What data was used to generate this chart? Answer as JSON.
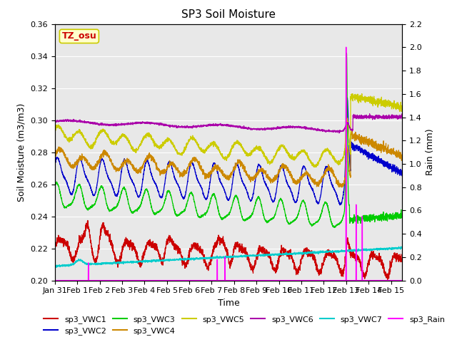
{
  "title": "SP3 Soil Moisture",
  "xlabel": "Time",
  "ylabel_left": "Soil Moisture (m3/m3)",
  "ylabel_right": "Rain (mm)",
  "xlim_days": [
    0,
    15.5
  ],
  "ylim_left": [
    0.2,
    0.36
  ],
  "ylim_right": [
    0.0,
    2.2
  ],
  "xtick_labels": [
    "Jan 31",
    "Feb 1",
    "Feb 2",
    "Feb 3",
    "Feb 4",
    "Feb 5",
    "Feb 6",
    "Feb 7",
    "Feb 8",
    "Feb 9",
    "Feb 10",
    "Feb 11",
    "Feb 12",
    "Feb 13",
    "Feb 14",
    "Feb 15"
  ],
  "xtick_positions": [
    0,
    1,
    2,
    3,
    4,
    5,
    6,
    7,
    8,
    9,
    10,
    11,
    12,
    13,
    14,
    15
  ],
  "ytick_left": [
    0.2,
    0.22,
    0.24,
    0.26,
    0.28,
    0.3,
    0.32,
    0.34,
    0.36
  ],
  "ytick_right": [
    0.0,
    0.2,
    0.4,
    0.6,
    0.8,
    1.0,
    1.2,
    1.4,
    1.6,
    1.8,
    2.0,
    2.2
  ],
  "bg_color": "#e8e8e8",
  "annotation_text": "TZ_osu",
  "annotation_color": "#cc0000",
  "annotation_bg": "#ffffcc",
  "annotation_border": "#cccc00",
  "colors": {
    "vwc1": "#cc0000",
    "vwc2": "#0000cc",
    "vwc3": "#00cc00",
    "vwc4": "#cc8800",
    "vwc5": "#cccc00",
    "vwc6": "#aa00aa",
    "vwc7": "#00cccc",
    "rain": "#ff00ff"
  }
}
